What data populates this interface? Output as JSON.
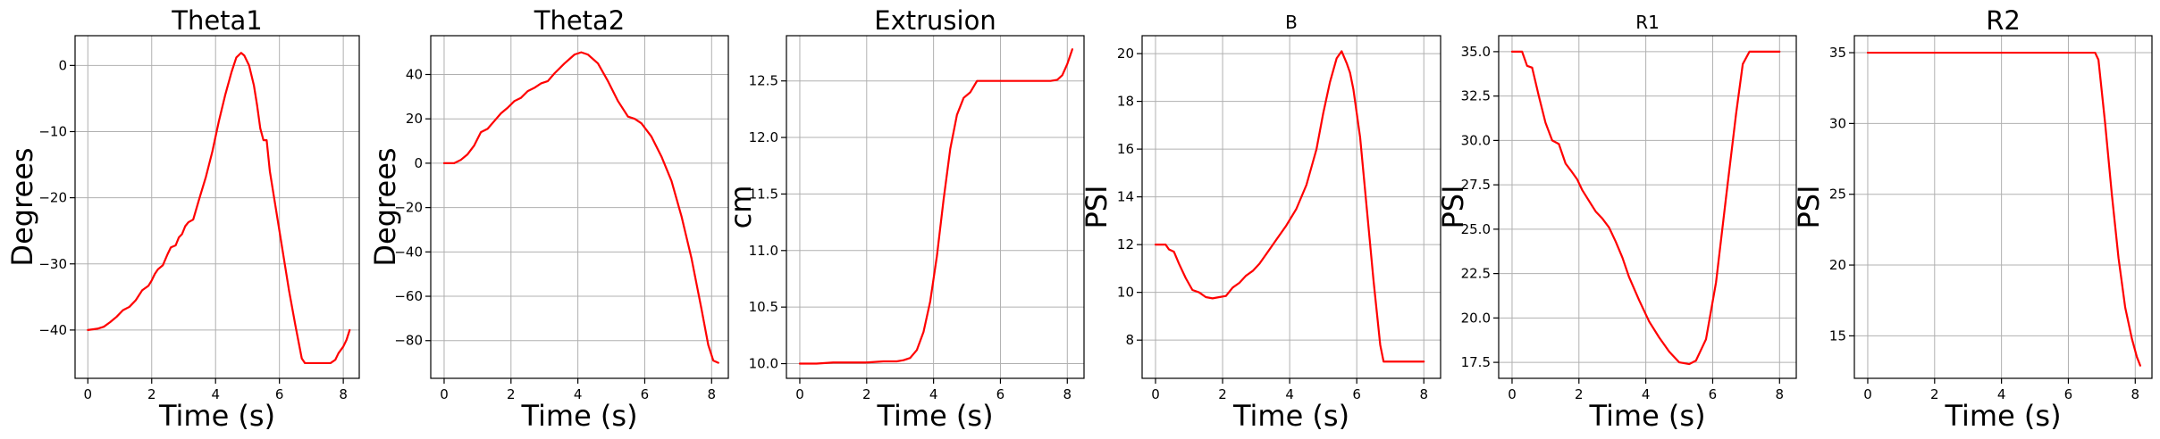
{
  "chart_data": [
    {
      "type": "line",
      "title": "Theta1",
      "xlabel": "Time (s)",
      "ylabel": "Degrees",
      "xlim": [
        -0.4,
        8.5
      ],
      "ylim": [
        -47.3,
        4.5
      ],
      "xticks": [
        0,
        2,
        4,
        6,
        8
      ],
      "yticks": [
        -40,
        -30,
        -20,
        -10,
        0
      ],
      "xtick_labels": [
        "0",
        "2",
        "4",
        "6",
        "8"
      ],
      "ytick_labels": [
        "−40",
        "−30",
        "−20",
        "−10",
        "0"
      ],
      "grid": true,
      "color": "#ff0000",
      "points": [
        [
          0,
          -40
        ],
        [
          0.3,
          -39.8
        ],
        [
          0.5,
          -39.5
        ],
        [
          0.7,
          -38.8
        ],
        [
          0.9,
          -38
        ],
        [
          1.1,
          -37
        ],
        [
          1.3,
          -36.5
        ],
        [
          1.5,
          -35.5
        ],
        [
          1.7,
          -34
        ],
        [
          1.9,
          -33.3
        ],
        [
          2.0,
          -32.5
        ],
        [
          2.1,
          -31.5
        ],
        [
          2.2,
          -30.8
        ],
        [
          2.35,
          -30.2
        ],
        [
          2.5,
          -28.5
        ],
        [
          2.6,
          -27.5
        ],
        [
          2.75,
          -27.2
        ],
        [
          2.85,
          -26
        ],
        [
          2.95,
          -25.5
        ],
        [
          3.05,
          -24.3
        ],
        [
          3.15,
          -23.7
        ],
        [
          3.3,
          -23.3
        ],
        [
          3.5,
          -20
        ],
        [
          3.7,
          -16.8
        ],
        [
          3.9,
          -13
        ],
        [
          4.1,
          -8.5
        ],
        [
          4.3,
          -4.5
        ],
        [
          4.5,
          -1
        ],
        [
          4.65,
          1.2
        ],
        [
          4.8,
          1.9
        ],
        [
          4.9,
          1.5
        ],
        [
          5.05,
          0
        ],
        [
          5.2,
          -3
        ],
        [
          5.3,
          -6
        ],
        [
          5.4,
          -9.5
        ],
        [
          5.5,
          -11.3
        ],
        [
          5.6,
          -11.3
        ],
        [
          5.7,
          -16
        ],
        [
          5.9,
          -22
        ],
        [
          6.1,
          -28
        ],
        [
          6.3,
          -34
        ],
        [
          6.5,
          -39.3
        ],
        [
          6.7,
          -44.3
        ],
        [
          6.8,
          -45
        ],
        [
          7.0,
          -45
        ],
        [
          7.3,
          -45
        ],
        [
          7.6,
          -45
        ],
        [
          7.75,
          -44.5
        ],
        [
          7.85,
          -43.5
        ],
        [
          8.0,
          -42.5
        ],
        [
          8.1,
          -41.5
        ],
        [
          8.2,
          -40
        ]
      ]
    },
    {
      "type": "line",
      "title": "Theta2",
      "xlabel": "Time (s)",
      "ylabel": "Degrees",
      "xlim": [
        -0.4,
        8.5
      ],
      "ylim": [
        -97,
        57.5
      ],
      "xticks": [
        0,
        2,
        4,
        6,
        8
      ],
      "yticks": [
        -80,
        -60,
        -40,
        -20,
        0,
        20,
        40
      ],
      "xtick_labels": [
        "0",
        "2",
        "4",
        "6",
        "8"
      ],
      "ytick_labels": [
        "−80",
        "−60",
        "−40",
        "−20",
        "0",
        "20",
        "40"
      ],
      "grid": true,
      "color": "#ff0000",
      "points": [
        [
          0,
          0
        ],
        [
          0.3,
          0
        ],
        [
          0.5,
          1.5
        ],
        [
          0.7,
          4
        ],
        [
          0.9,
          8
        ],
        [
          1.1,
          14
        ],
        [
          1.3,
          15.5
        ],
        [
          1.5,
          19
        ],
        [
          1.7,
          22.5
        ],
        [
          1.9,
          25
        ],
        [
          2.1,
          28
        ],
        [
          2.3,
          29.5
        ],
        [
          2.5,
          32.5
        ],
        [
          2.7,
          34
        ],
        [
          2.9,
          36
        ],
        [
          3.1,
          37
        ],
        [
          3.3,
          40.5
        ],
        [
          3.6,
          45
        ],
        [
          3.9,
          49
        ],
        [
          4.1,
          50
        ],
        [
          4.3,
          49
        ],
        [
          4.6,
          45
        ],
        [
          4.9,
          37
        ],
        [
          5.2,
          28
        ],
        [
          5.5,
          21
        ],
        [
          5.7,
          20
        ],
        [
          5.9,
          18
        ],
        [
          6.2,
          12
        ],
        [
          6.5,
          3
        ],
        [
          6.8,
          -8
        ],
        [
          7.1,
          -24
        ],
        [
          7.4,
          -43
        ],
        [
          7.7,
          -66
        ],
        [
          7.9,
          -82
        ],
        [
          8.05,
          -89
        ],
        [
          8.2,
          -90
        ]
      ]
    },
    {
      "type": "line",
      "title": "Extrusion",
      "xlabel": "Time (s)",
      "ylabel": "cm",
      "xlim": [
        -0.4,
        8.5
      ],
      "ylim": [
        9.87,
        12.9
      ],
      "xticks": [
        0,
        2,
        4,
        6,
        8
      ],
      "yticks": [
        10.0,
        10.5,
        11.0,
        11.5,
        12.0,
        12.5
      ],
      "xtick_labels": [
        "0",
        "2",
        "4",
        "6",
        "8"
      ],
      "ytick_labels": [
        "10.0",
        "10.5",
        "11.0",
        "11.5",
        "12.0",
        "12.5"
      ],
      "grid": true,
      "color": "#ff0000",
      "points": [
        [
          0,
          10
        ],
        [
          0.5,
          10
        ],
        [
          1.0,
          10.01
        ],
        [
          1.5,
          10.01
        ],
        [
          2.0,
          10.01
        ],
        [
          2.5,
          10.02
        ],
        [
          2.9,
          10.02
        ],
        [
          3.1,
          10.03
        ],
        [
          3.3,
          10.05
        ],
        [
          3.5,
          10.12
        ],
        [
          3.7,
          10.28
        ],
        [
          3.9,
          10.55
        ],
        [
          4.1,
          10.95
        ],
        [
          4.3,
          11.45
        ],
        [
          4.5,
          11.9
        ],
        [
          4.7,
          12.2
        ],
        [
          4.9,
          12.35
        ],
        [
          5.1,
          12.4
        ],
        [
          5.3,
          12.5
        ],
        [
          5.6,
          12.5
        ],
        [
          6.0,
          12.5
        ],
        [
          6.5,
          12.5
        ],
        [
          7.0,
          12.5
        ],
        [
          7.5,
          12.5
        ],
        [
          7.7,
          12.51
        ],
        [
          7.85,
          12.55
        ],
        [
          8.0,
          12.65
        ],
        [
          8.15,
          12.78
        ]
      ]
    },
    {
      "type": "line",
      "title": "B",
      "xlabel": "Time (s)",
      "ylabel": "PSI",
      "xlim": [
        -0.4,
        8.5
      ],
      "ylim": [
        6.4,
        20.75
      ],
      "xticks": [
        0,
        2,
        4,
        6,
        8
      ],
      "yticks": [
        8,
        10,
        12,
        14,
        16,
        18,
        20
      ],
      "xtick_labels": [
        "0",
        "2",
        "4",
        "6",
        "8"
      ],
      "ytick_labels": [
        "8",
        "10",
        "12",
        "14",
        "16",
        "18",
        "20"
      ],
      "grid": true,
      "color": "#ff0000",
      "points": [
        [
          0,
          12
        ],
        [
          0.3,
          12
        ],
        [
          0.4,
          11.8
        ],
        [
          0.55,
          11.7
        ],
        [
          0.7,
          11.2
        ],
        [
          0.9,
          10.6
        ],
        [
          1.1,
          10.1
        ],
        [
          1.3,
          10
        ],
        [
          1.5,
          9.8
        ],
        [
          1.7,
          9.75
        ],
        [
          1.9,
          9.8
        ],
        [
          2.1,
          9.85
        ],
        [
          2.3,
          10.2
        ],
        [
          2.5,
          10.4
        ],
        [
          2.7,
          10.7
        ],
        [
          2.9,
          10.9
        ],
        [
          3.1,
          11.2
        ],
        [
          3.3,
          11.6
        ],
        [
          3.6,
          12.2
        ],
        [
          3.9,
          12.8
        ],
        [
          4.2,
          13.5
        ],
        [
          4.5,
          14.5
        ],
        [
          4.8,
          16
        ],
        [
          5.0,
          17.5
        ],
        [
          5.2,
          18.8
        ],
        [
          5.4,
          19.8
        ],
        [
          5.55,
          20.1
        ],
        [
          5.7,
          19.6
        ],
        [
          5.8,
          19.2
        ],
        [
          5.9,
          18.5
        ],
        [
          6.1,
          16.5
        ],
        [
          6.3,
          13.5
        ],
        [
          6.5,
          10.5
        ],
        [
          6.7,
          7.8
        ],
        [
          6.8,
          7.1
        ],
        [
          7.0,
          7.1
        ],
        [
          7.5,
          7.1
        ],
        [
          8.0,
          7.1
        ]
      ]
    },
    {
      "type": "line",
      "title": "R1",
      "xlabel": "Time (s)",
      "ylabel": "PSI",
      "xlim": [
        -0.4,
        8.5
      ],
      "ylim": [
        16.6,
        35.9
      ],
      "xticks": [
        0,
        2,
        4,
        6,
        8
      ],
      "yticks": [
        17.5,
        20.0,
        22.5,
        25.0,
        27.5,
        30.0,
        32.5,
        35.0
      ],
      "xtick_labels": [
        "0",
        "2",
        "4",
        "6",
        "8"
      ],
      "ytick_labels": [
        "17.5",
        "20.0",
        "22.5",
        "25.0",
        "27.5",
        "30.0",
        "32.5",
        "35.0"
      ],
      "grid": true,
      "color": "#ff0000",
      "points": [
        [
          0,
          35
        ],
        [
          0.3,
          35
        ],
        [
          0.45,
          34.2
        ],
        [
          0.6,
          34.1
        ],
        [
          0.8,
          32.5
        ],
        [
          1.0,
          31
        ],
        [
          1.2,
          30
        ],
        [
          1.4,
          29.8
        ],
        [
          1.6,
          28.7
        ],
        [
          1.8,
          28.2
        ],
        [
          1.95,
          27.8
        ],
        [
          2.1,
          27.2
        ],
        [
          2.3,
          26.6
        ],
        [
          2.5,
          26
        ],
        [
          2.7,
          25.6
        ],
        [
          2.9,
          25.1
        ],
        [
          3.1,
          24.3
        ],
        [
          3.3,
          23.4
        ],
        [
          3.5,
          22.3
        ],
        [
          3.8,
          21
        ],
        [
          4.1,
          19.8
        ],
        [
          4.4,
          18.9
        ],
        [
          4.7,
          18.1
        ],
        [
          5.0,
          17.5
        ],
        [
          5.3,
          17.4
        ],
        [
          5.5,
          17.6
        ],
        [
          5.8,
          18.8
        ],
        [
          6.1,
          22
        ],
        [
          6.4,
          26.8
        ],
        [
          6.7,
          31.5
        ],
        [
          6.9,
          34.3
        ],
        [
          7.1,
          35
        ],
        [
          7.5,
          35
        ],
        [
          8.0,
          35
        ]
      ]
    },
    {
      "type": "line",
      "title": "R2",
      "xlabel": "Time (s)",
      "ylabel": "PSI",
      "xlim": [
        -0.4,
        8.5
      ],
      "ylim": [
        12.0,
        36.2
      ],
      "xticks": [
        0,
        2,
        4,
        6,
        8
      ],
      "yticks": [
        15,
        20,
        25,
        30,
        35
      ],
      "xtick_labels": [
        "0",
        "2",
        "4",
        "6",
        "8"
      ],
      "ytick_labels": [
        "15",
        "20",
        "25",
        "30",
        "35"
      ],
      "grid": true,
      "color": "#ff0000",
      "points": [
        [
          0,
          35
        ],
        [
          2,
          35
        ],
        [
          4,
          35
        ],
        [
          6,
          35
        ],
        [
          6.8,
          35
        ],
        [
          6.9,
          34.5
        ],
        [
          7.1,
          30
        ],
        [
          7.3,
          25
        ],
        [
          7.5,
          20.5
        ],
        [
          7.7,
          17
        ],
        [
          7.9,
          14.8
        ],
        [
          8.05,
          13.5
        ],
        [
          8.15,
          12.9
        ]
      ]
    }
  ]
}
